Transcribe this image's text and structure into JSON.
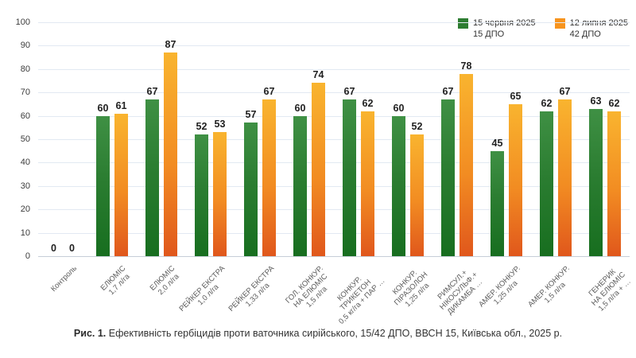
{
  "chart_data": {
    "type": "bar",
    "title": "",
    "xlabel": "",
    "ylabel": "",
    "ylim": [
      0,
      100
    ],
    "ytick_step": 10,
    "grid": true,
    "legend_position": "top-right",
    "categories": [
      [
        "Контроль"
      ],
      [
        "ЕЛЮМІС",
        "1,7 л/га"
      ],
      [
        "ЕЛЮМІС",
        "2,0 л/га"
      ],
      [
        "РЕЙКЕР ЕКСТРА",
        "1,0 л/га"
      ],
      [
        "РЕЙКЕР ЕКСТРА",
        "1,33 л/га"
      ],
      [
        "ГОЛ. КОНКУР.",
        "НА ЕЛЮМІС",
        "1,5 л/га"
      ],
      [
        "КОНКУР.",
        "ТРИКЕТОН",
        "0,5 кг/га + ПАР …"
      ],
      [
        "КОНКУР.",
        "ПІРАЗОЛОН",
        "1,25 л/га"
      ],
      [
        "РИМСУЛ.+",
        "НІКОСУЛЬФ.+",
        "ДИКАМБА …"
      ],
      [
        "АМЕР. КОНКУР.",
        "1,25 л/га"
      ],
      [
        "АМЕР. КОНКУР.",
        "1,5 л/га"
      ],
      [
        "ГЕНЕРИК",
        "НА ЕЛЮМІС",
        "1,5 л/га + …"
      ]
    ],
    "series": [
      {
        "name": "15 червня 2025",
        "sublabel": "15 ДПО",
        "legend_color": "#2e7d32",
        "bar_gradient_top": "#3f9044",
        "bar_gradient_bottom": "#176e1f",
        "values": [
          0,
          60,
          67,
          52,
          57,
          60,
          67,
          60,
          67,
          45,
          62,
          63
        ]
      },
      {
        "name": "12 липня 2025",
        "sublabel": "42 ДПО",
        "legend_color": "#f7941e",
        "bar_gradient_top": "#f9b42f",
        "bar_gradient_bottom": "#e0571c",
        "values": [
          0,
          61,
          87,
          53,
          67,
          74,
          62,
          52,
          78,
          65,
          67,
          62
        ]
      }
    ]
  },
  "caption": {
    "prefix": "Рис. 1.",
    "text": "Ефективність гербіцидів проти ваточника сирійського, 15/42 ДПО, ВВСН 15,  Київська обл., 2025 р."
  }
}
